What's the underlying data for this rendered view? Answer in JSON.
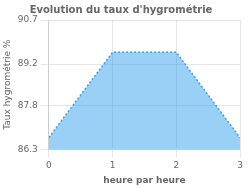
{
  "chart_data": {
    "type": "area",
    "title": "Evolution du taux d'hygrométrie",
    "xlabel": "heure par heure",
    "ylabel": "Taux hygrométrie %",
    "x": [
      0,
      1,
      2,
      3
    ],
    "values": [
      86.7,
      89.6,
      89.6,
      86.7
    ],
    "line_style": "dotted",
    "xlim": [
      0,
      3
    ],
    "ylim": [
      86.3,
      90.7
    ],
    "xticks": [
      0,
      1,
      2,
      3
    ],
    "yticks": [
      86.3,
      87.8,
      89.2,
      90.7
    ],
    "grid": true
  }
}
